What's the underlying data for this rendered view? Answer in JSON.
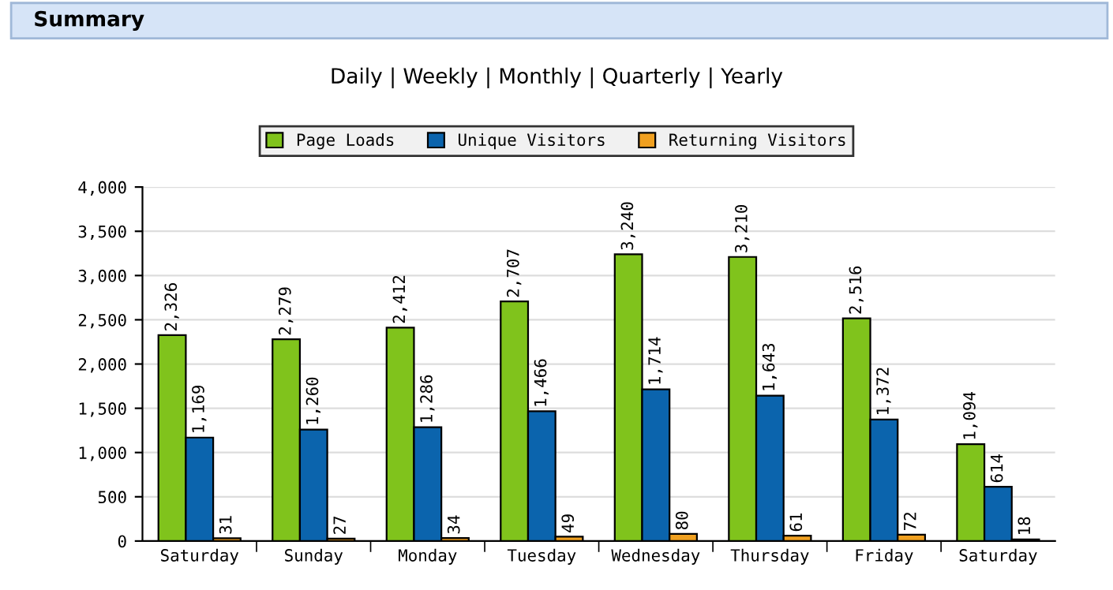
{
  "chart_data": {
    "type": "bar",
    "title": "Summary",
    "subtitle": "Daily | Weekly | Monthly | Quarterly | Yearly",
    "categories": [
      "Saturday",
      "Sunday",
      "Monday",
      "Tuesday",
      "Wednesday",
      "Thursday",
      "Friday",
      "Saturday"
    ],
    "series": [
      {
        "name": "Page Loads",
        "color": "#80c31c",
        "values": [
          2326,
          2279,
          2412,
          2707,
          3240,
          3210,
          2516,
          1094
        ],
        "value_labels": [
          "2,326",
          "2,279",
          "2,412",
          "2,707",
          "3,240",
          "3,210",
          "2,516",
          "1,094"
        ]
      },
      {
        "name": "Unique Visitors",
        "color": "#0b64ad",
        "values": [
          1169,
          1260,
          1286,
          1466,
          1714,
          1643,
          1372,
          614
        ],
        "value_labels": [
          "1,169",
          "1,260",
          "1,286",
          "1,466",
          "1,714",
          "1,643",
          "1,372",
          "614"
        ]
      },
      {
        "name": "Returning Visitors",
        "color": "#f0a020",
        "values": [
          31,
          27,
          34,
          49,
          80,
          61,
          72,
          18
        ],
        "value_labels": [
          "31",
          "27",
          "34",
          "49",
          "80",
          "61",
          "72",
          "18"
        ]
      }
    ],
    "ylim": [
      0,
      4000
    ],
    "yticks": [
      0,
      {
        "value": 500,
        "label": "500"
      },
      {
        "value": 1000,
        "label": "1,000"
      },
      {
        "value": 1500,
        "label": "1,500"
      },
      {
        "value": 2000,
        "label": "2,000"
      },
      {
        "value": 2500,
        "label": "2,500"
      },
      {
        "value": 3000,
        "label": "3,000"
      },
      {
        "value": 3500,
        "label": "3,500"
      },
      {
        "value": 4000,
        "label": "4,000"
      }
    ],
    "grid": "y",
    "legend": "top"
  }
}
